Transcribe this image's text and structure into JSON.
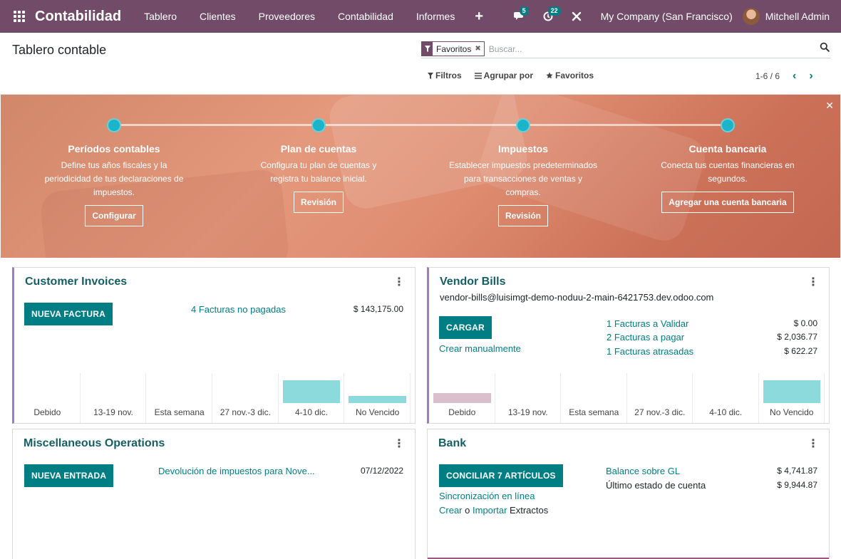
{
  "navbar": {
    "app_name": "Contabilidad",
    "menus": [
      "Tablero",
      "Clientes",
      "Proveedores",
      "Contabilidad",
      "Informes"
    ],
    "plus": "+",
    "messages_count": "5",
    "activities_count": "22",
    "company": "My Company (San Francisco)",
    "user": "Mitchell Admin",
    "color": "#714b67"
  },
  "control_panel": {
    "title": "Tablero contable",
    "facet_value": "Favoritos",
    "search_placeholder": "Buscar...",
    "filters": "Filtros",
    "group_by": "Agrupar por",
    "favorites": "Favoritos",
    "pager": "1-6 / 6"
  },
  "onboarding": {
    "steps": [
      {
        "title": "Períodos contables",
        "description": "Define tus años fiscales y la periodicidad de tus declaraciones de impuestos.",
        "button": "Configurar"
      },
      {
        "title": "Plan de cuentas",
        "description": "Configura tu plan de cuentas y registra tu balance inicial.",
        "button": "Revisión"
      },
      {
        "title": "Impuestos",
        "description": "Establecer impuestos predeterminados para transacciones de ventas y compras.",
        "button": "Revisión"
      },
      {
        "title": "Cuenta bancaria",
        "description": "Conecta tus cuentas financieras en segundos.",
        "button": "Agregar una cuenta bancaria"
      }
    ],
    "dot_color": "#1bb4c8"
  },
  "journals": {
    "customer_invoices": {
      "title": "Customer Invoices",
      "button": "NUEVA FACTURA",
      "link": "4 Facturas no pagadas",
      "amount": "$ 143,175.00",
      "graph": {
        "labels": [
          "Debido",
          "13-19 nov.",
          "Esta semana",
          "27 nov.-3 dic.",
          "4-10 dic.",
          "No Vencido"
        ],
        "values": [
          0,
          0,
          0,
          0,
          1,
          0.3
        ],
        "bar_color": "#8cdadc"
      }
    },
    "vendor_bills": {
      "title": "Vendor Bills",
      "email": "vendor-bills@luisimgt-demo-noduu-2-main-6421753.dev.odoo.com",
      "button": "CARGAR",
      "manual": "Crear manualmente",
      "lines": [
        {
          "label": "1 Facturas a Validar",
          "amount": "$ 0.00"
        },
        {
          "label": "2 Facturas a pagar",
          "amount": "$ 2,036.77"
        },
        {
          "label": "1 Facturas atrasadas",
          "amount": "$ 622.27"
        }
      ],
      "graph": {
        "labels": [
          "Debido",
          "13-19 nov.",
          "Esta semana",
          "27 nov.-3 dic.",
          "4-10 dic.",
          "No Vencido"
        ],
        "values": [
          0.45,
          0,
          0,
          0,
          0,
          1
        ],
        "due_color": "#d9c0cc",
        "bar_color": "#8cdadc"
      }
    },
    "misc": {
      "title": "Miscellaneous Operations",
      "button": "NUEVA ENTRADA",
      "entry": "Devolución de impuestos para Nove...",
      "date": "07/12/2022"
    },
    "bank": {
      "title": "Bank",
      "button": "CONCILIAR 7 ARTÍCULOS",
      "sync": "Sincronización en línea",
      "create": "Crear",
      "or": "o",
      "import": "Importar",
      "statements": "Extractos",
      "balance_label": "Balance sobre GL",
      "balance_amount": "$ 4,741.87",
      "last_label": "Último estado de cuenta",
      "last_amount": "$ 9,944.87"
    }
  }
}
